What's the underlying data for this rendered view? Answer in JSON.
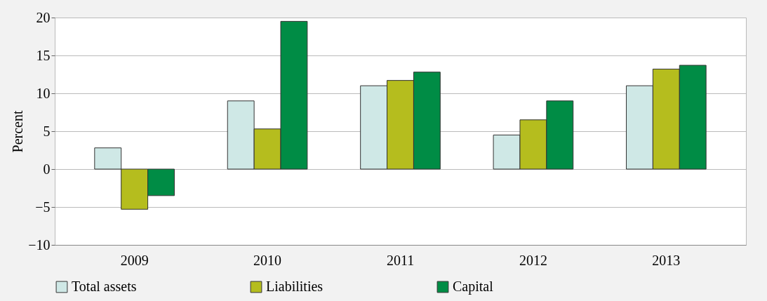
{
  "chart_data": {
    "type": "bar",
    "ylabel": "Percent",
    "categories": [
      "2009",
      "2010",
      "2011",
      "2012",
      "2013"
    ],
    "series": [
      {
        "name": "Total assets",
        "color": "#cfe8e6",
        "values": [
          2.8,
          9.0,
          11.0,
          4.5,
          11.0
        ]
      },
      {
        "name": "Liabilities",
        "color": "#b5bd1e",
        "values": [
          -5.3,
          5.3,
          11.7,
          6.5,
          13.2
        ]
      },
      {
        "name": "Capital",
        "color": "#008c45",
        "values": [
          -3.5,
          19.5,
          12.8,
          9.0,
          13.7
        ]
      }
    ],
    "ylim": [
      -10,
      20
    ],
    "yticks": [
      {
        "value": -10,
        "label": "−10"
      },
      {
        "value": -5,
        "label": "−5"
      },
      0,
      5,
      10,
      15,
      20
    ],
    "grid": "y",
    "legend": "bottom"
  }
}
